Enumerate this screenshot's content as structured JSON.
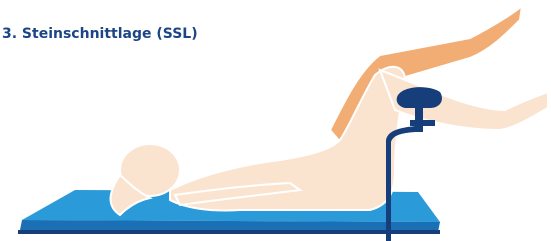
{
  "title": "3. Steinschnittlage (SSL)"
}
